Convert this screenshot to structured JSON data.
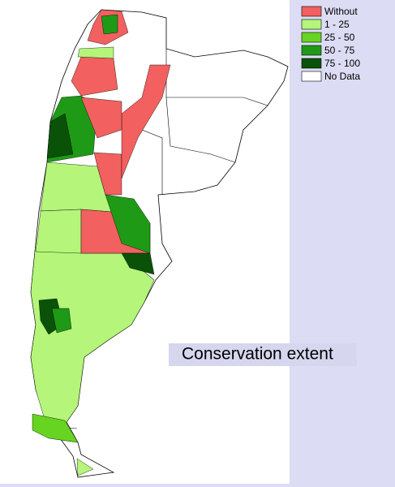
{
  "title": "Conservation extent",
  "legend": [
    {
      "label": "Without",
      "color": "#f26060"
    },
    {
      "label": "1 - 25",
      "color": "#b4f57a"
    },
    {
      "label": "25 - 50",
      "color": "#66d420"
    },
    {
      "label": "50 - 75",
      "color": "#1e9a16"
    },
    {
      "label": "75 - 100",
      "color": "#0a5208"
    },
    {
      "label": "No Data",
      "color": "#ffffff"
    }
  ]
}
